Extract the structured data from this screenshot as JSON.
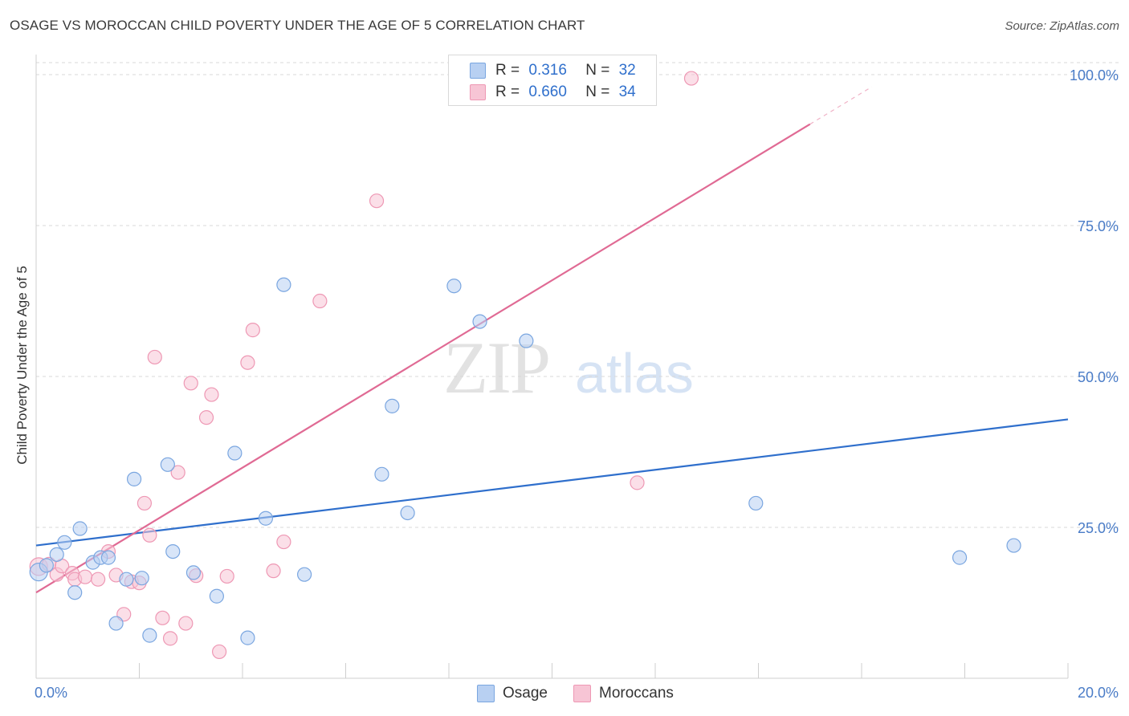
{
  "title": "OSAGE VS MOROCCAN CHILD POVERTY UNDER THE AGE OF 5 CORRELATION CHART",
  "source": "Source: ZipAtlas.com",
  "watermark": {
    "zip": "ZIP",
    "atlas": "atlas"
  },
  "legend": {
    "osage": {
      "r_label": "R =",
      "r_value": "0.316",
      "n_label": "N =",
      "n_value": "32"
    },
    "moroccans": {
      "r_label": "R =",
      "r_value": "0.660",
      "n_label": "N =",
      "n_value": "34"
    }
  },
  "colors": {
    "osage_fill": "#b8d0f2",
    "osage_stroke": "#7aa6e0",
    "osage_line": "#2f6fcc",
    "moroccan_fill": "#f7c5d5",
    "moroccan_stroke": "#ee98b4",
    "moroccan_line": "#e06a94",
    "axis_text": "#4a7cc7",
    "grid": "#d8d8d8"
  },
  "chart_data": {
    "type": "scatter",
    "title": "OSAGE VS MOROCCAN CHILD POVERTY UNDER THE AGE OF 5 CORRELATION CHART",
    "xlabel": "",
    "ylabel": "Child Poverty Under the Age of 5",
    "xlim": [
      0,
      20
    ],
    "ylim": [
      0,
      102
    ],
    "x_tick_labels": [
      "0.0%",
      "20.0%"
    ],
    "y_ticks": [
      25,
      50,
      75,
      100
    ],
    "y_tick_labels": [
      "25.0%",
      "50.0%",
      "75.0%",
      "100.0%"
    ],
    "grid": true,
    "legend_position": "top-center",
    "series": [
      {
        "name": "Osage",
        "points": [
          [
            0.05,
            17.6
          ],
          [
            0.2,
            18.7
          ],
          [
            0.4,
            20.5
          ],
          [
            0.55,
            22.5
          ],
          [
            0.75,
            14.2
          ],
          [
            0.85,
            24.8
          ],
          [
            1.1,
            19.2
          ],
          [
            1.25,
            20.0
          ],
          [
            1.4,
            20.0
          ],
          [
            1.55,
            9.1
          ],
          [
            1.75,
            16.4
          ],
          [
            1.9,
            33.0
          ],
          [
            2.05,
            16.6
          ],
          [
            2.2,
            7.1
          ],
          [
            2.55,
            35.4
          ],
          [
            2.65,
            21.0
          ],
          [
            3.05,
            17.5
          ],
          [
            3.5,
            13.6
          ],
          [
            3.85,
            37.3
          ],
          [
            4.1,
            6.7
          ],
          [
            4.45,
            26.5
          ],
          [
            4.8,
            65.2
          ],
          [
            5.2,
            17.2
          ],
          [
            6.7,
            33.8
          ],
          [
            6.9,
            45.1
          ],
          [
            7.2,
            27.4
          ],
          [
            8.1,
            65.0
          ],
          [
            8.6,
            59.1
          ],
          [
            9.5,
            55.9
          ],
          [
            13.95,
            29.0
          ],
          [
            17.9,
            20.0
          ],
          [
            18.95,
            22.0
          ]
        ],
        "trend": {
          "x": [
            0,
            20
          ],
          "y": [
            22.0,
            42.9
          ]
        }
      },
      {
        "name": "Moroccans",
        "points": [
          [
            0.05,
            18.5
          ],
          [
            0.25,
            18.9
          ],
          [
            0.4,
            17.2
          ],
          [
            0.5,
            18.6
          ],
          [
            0.7,
            17.4
          ],
          [
            0.75,
            16.4
          ],
          [
            0.95,
            16.8
          ],
          [
            1.2,
            16.4
          ],
          [
            1.4,
            21.0
          ],
          [
            1.55,
            17.1
          ],
          [
            1.7,
            10.6
          ],
          [
            1.85,
            16.0
          ],
          [
            2.0,
            15.8
          ],
          [
            2.1,
            29.0
          ],
          [
            2.2,
            23.7
          ],
          [
            2.3,
            53.2
          ],
          [
            2.45,
            10.0
          ],
          [
            2.6,
            6.6
          ],
          [
            2.75,
            34.1
          ],
          [
            2.9,
            9.1
          ],
          [
            3.0,
            48.9
          ],
          [
            3.1,
            17.0
          ],
          [
            3.3,
            43.2
          ],
          [
            3.4,
            47.0
          ],
          [
            3.55,
            4.4
          ],
          [
            3.7,
            16.9
          ],
          [
            4.1,
            52.3
          ],
          [
            4.2,
            57.7
          ],
          [
            4.6,
            17.8
          ],
          [
            4.8,
            22.6
          ],
          [
            5.5,
            62.5
          ],
          [
            6.6,
            79.1
          ],
          [
            11.65,
            32.4
          ],
          [
            12.7,
            99.4
          ]
        ],
        "trend": {
          "x": [
            0,
            15
          ],
          "y": [
            14.2,
            91.8
          ]
        },
        "trend_dashed_extension": {
          "x": [
            15,
            16.2
          ],
          "y": [
            91.8,
            98.0
          ]
        }
      }
    ]
  },
  "bottom_legend": {
    "osage": "Osage",
    "moroccans": "Moroccans"
  }
}
